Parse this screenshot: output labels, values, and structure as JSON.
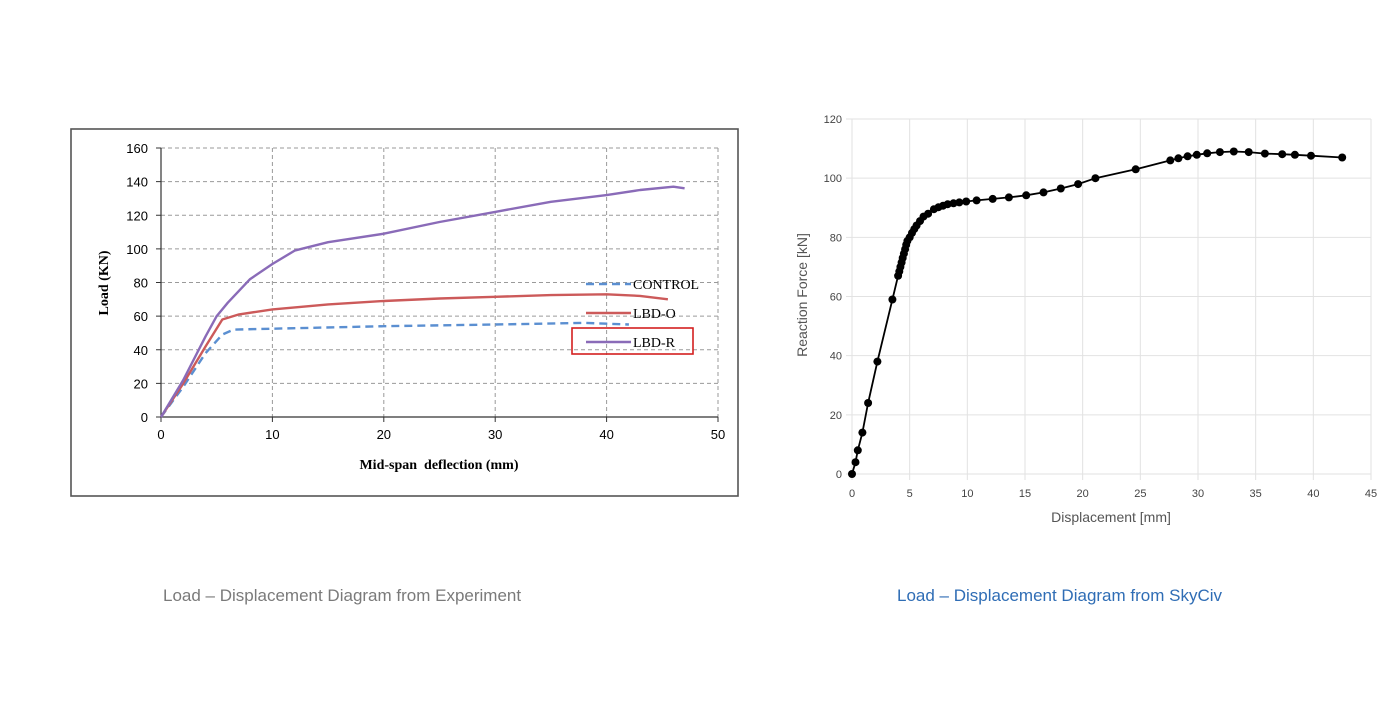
{
  "captions": {
    "left": "Load – Displacement Diagram from Experiment",
    "right": "Load – Displacement Diagram from SkyCiv"
  },
  "chart_data": [
    {
      "type": "line",
      "title": "",
      "xlabel": "Mid-span  deflection (mm)",
      "ylabel": "Load (KN)",
      "xlim": [
        0,
        50
      ],
      "ylim": [
        0,
        160
      ],
      "xticks": [
        0,
        10,
        20,
        30,
        40,
        50
      ],
      "yticks": [
        0,
        20,
        40,
        60,
        80,
        100,
        120,
        140,
        160
      ],
      "grid": true,
      "grid_style": "dashed",
      "legend_position": "right",
      "highlighted_legend_entry": "LBD-R",
      "series": [
        {
          "name": "CONTROL",
          "color": "#5b8fd1",
          "dash": true,
          "points": [
            [
              0,
              0
            ],
            [
              2,
              18
            ],
            [
              4,
              38
            ],
            [
              5.5,
              49
            ],
            [
              6.5,
              52
            ],
            [
              10,
              52.5
            ],
            [
              20,
              54
            ],
            [
              30,
              55
            ],
            [
              38,
              56
            ],
            [
              42,
              55
            ]
          ]
        },
        {
          "name": "LBD-O",
          "color": "#cc5a5a",
          "dash": false,
          "points": [
            [
              0,
              0
            ],
            [
              2,
              20
            ],
            [
              4,
              42
            ],
            [
              5.5,
              58
            ],
            [
              7,
              61
            ],
            [
              10,
              64
            ],
            [
              15,
              67
            ],
            [
              20,
              69
            ],
            [
              25,
              70.5
            ],
            [
              30,
              71.5
            ],
            [
              35,
              72.5
            ],
            [
              40,
              73
            ],
            [
              43,
              72
            ],
            [
              45.5,
              70
            ]
          ]
        },
        {
          "name": "LBD-R",
          "color": "#8a6bb8",
          "dash": false,
          "points": [
            [
              0,
              0
            ],
            [
              2,
              22
            ],
            [
              4,
              48
            ],
            [
              5,
              60
            ],
            [
              6,
              68
            ],
            [
              8,
              82
            ],
            [
              10,
              91
            ],
            [
              12,
              99
            ],
            [
              15,
              104
            ],
            [
              20,
              109
            ],
            [
              25,
              116
            ],
            [
              30,
              122
            ],
            [
              35,
              128
            ],
            [
              40,
              132
            ],
            [
              43,
              135
            ],
            [
              46,
              137
            ],
            [
              47,
              136
            ]
          ]
        }
      ]
    },
    {
      "type": "line",
      "title": "",
      "xlabel": "Displacement [mm]",
      "ylabel": "Reaction Force [kN]",
      "xlim": [
        0,
        45
      ],
      "ylim": [
        0,
        120
      ],
      "xticks": [
        0,
        5,
        10,
        15,
        20,
        25,
        30,
        35,
        40,
        45
      ],
      "yticks": [
        0,
        20,
        40,
        60,
        80,
        100,
        120
      ],
      "grid": true,
      "grid_style": "solid",
      "markers": true,
      "color": "#000000",
      "series": [
        {
          "points": [
            [
              0,
              0
            ],
            [
              0.3,
              4
            ],
            [
              0.5,
              8
            ],
            [
              0.9,
              14
            ],
            [
              1.4,
              24
            ],
            [
              2.2,
              38
            ],
            [
              3.5,
              59
            ],
            [
              4.0,
              67
            ],
            [
              4.1,
              68.5
            ],
            [
              4.2,
              70
            ],
            [
              4.3,
              71.5
            ],
            [
              4.4,
              73
            ],
            [
              4.5,
              74.5
            ],
            [
              4.6,
              76
            ],
            [
              4.7,
              77.5
            ],
            [
              4.8,
              78.8
            ],
            [
              5.0,
              80
            ],
            [
              5.2,
              81.5
            ],
            [
              5.4,
              82.8
            ],
            [
              5.6,
              84
            ],
            [
              5.9,
              85.5
            ],
            [
              6.2,
              87
            ],
            [
              6.6,
              88
            ],
            [
              7.1,
              89.5
            ],
            [
              7.5,
              90.2
            ],
            [
              7.9,
              90.7
            ],
            [
              8.3,
              91.2
            ],
            [
              8.8,
              91.5
            ],
            [
              9.3,
              91.8
            ],
            [
              9.9,
              92.1
            ],
            [
              10.8,
              92.5
            ],
            [
              12.2,
              93
            ],
            [
              13.6,
              93.5
            ],
            [
              15.1,
              94.2
            ],
            [
              16.6,
              95.2
            ],
            [
              18.1,
              96.5
            ],
            [
              19.6,
              98
            ],
            [
              21.1,
              100
            ],
            [
              24.6,
              103
            ],
            [
              27.6,
              106
            ],
            [
              28.3,
              106.7
            ],
            [
              29.1,
              107.4
            ],
            [
              29.9,
              107.9
            ],
            [
              30.8,
              108.4
            ],
            [
              31.9,
              108.8
            ],
            [
              33.1,
              109
            ],
            [
              34.4,
              108.8
            ],
            [
              35.8,
              108.3
            ],
            [
              37.3,
              108.1
            ],
            [
              38.4,
              107.9
            ],
            [
              39.8,
              107.6
            ],
            [
              42.5,
              107
            ]
          ]
        }
      ]
    }
  ]
}
